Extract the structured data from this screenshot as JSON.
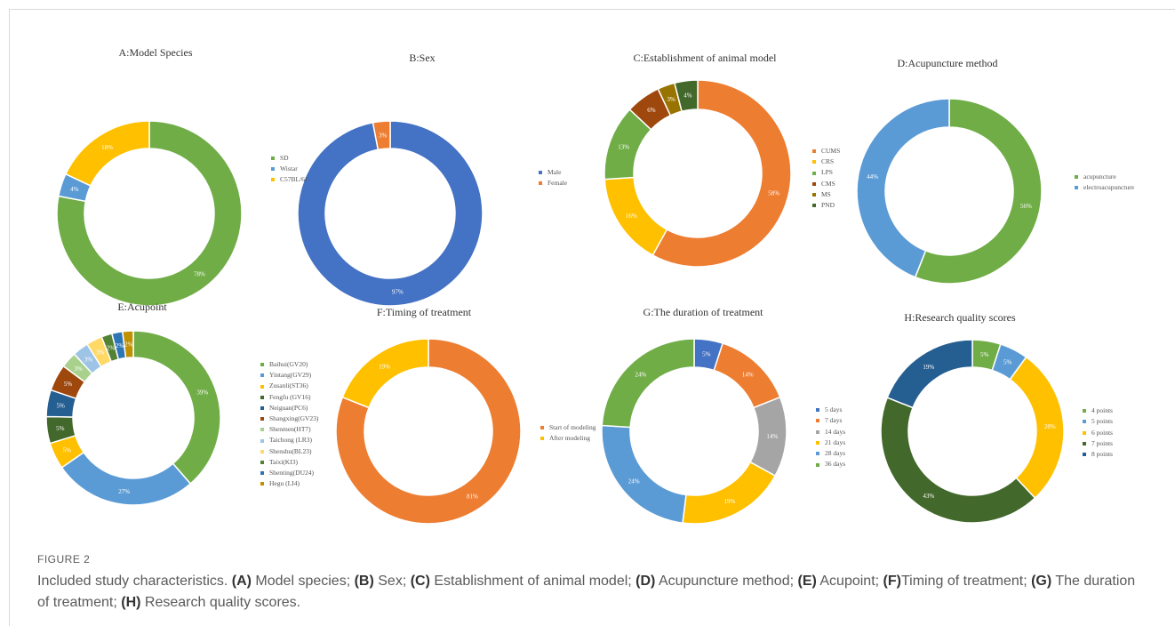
{
  "figure": {
    "label": "FIGURE 2",
    "caption_parts": [
      {
        "t": "Included study characteristics. ",
        "b": false
      },
      {
        "t": "(A)",
        "b": true
      },
      {
        "t": " Model species; ",
        "b": false
      },
      {
        "t": "(B)",
        "b": true
      },
      {
        "t": " Sex; ",
        "b": false
      },
      {
        "t": "(C)",
        "b": true
      },
      {
        "t": " Establishment of animal model; ",
        "b": false
      },
      {
        "t": "(D)",
        "b": true
      },
      {
        "t": " Acupuncture method; ",
        "b": false
      },
      {
        "t": "(E)",
        "b": true
      },
      {
        "t": " Acupoint; ",
        "b": false
      },
      {
        "t": "(F)",
        "b": true
      },
      {
        "t": "Timing of treatment; ",
        "b": false
      },
      {
        "t": "(G)",
        "b": true
      },
      {
        "t": " The duration of treatment; ",
        "b": false
      },
      {
        "t": "(H)",
        "b": true
      },
      {
        "t": " Research quality scores.",
        "b": false
      }
    ]
  },
  "chart_data": [
    {
      "type": "pie",
      "title": "A:Model Species",
      "categories": [
        "SD",
        "Wistar",
        "C57BL/6J"
      ],
      "values": [
        78,
        4,
        18
      ],
      "labels": [
        "78%",
        "4%",
        "18%"
      ],
      "colors": [
        "#70ad47",
        "#5b9bd5",
        "#ffc000"
      ],
      "legend_placement": "right"
    },
    {
      "type": "pie",
      "title": "B:Sex",
      "categories": [
        "Male",
        "Female"
      ],
      "values": [
        97,
        3
      ],
      "labels": [
        "97%",
        "3%"
      ],
      "colors": [
        "#4472c4",
        "#ed7d31"
      ],
      "legend_placement": "right"
    },
    {
      "type": "pie",
      "title": "C:Establishment of animal model",
      "categories": [
        "CUMS",
        "CRS",
        "LPS",
        "CMS",
        "MS",
        "PND"
      ],
      "values": [
        58,
        16,
        13,
        6,
        3,
        4
      ],
      "labels": [
        "58%",
        "16%",
        "13%",
        "6%",
        "3%",
        "4%"
      ],
      "colors": [
        "#ed7d31",
        "#ffc000",
        "#70ad47",
        "#9e480e",
        "#997300",
        "#43682b"
      ],
      "legend_placement": "right"
    },
    {
      "type": "pie",
      "title": "D:Acupuncture method",
      "categories": [
        "acupuncture",
        "electroacupuncture"
      ],
      "values": [
        56,
        44
      ],
      "labels": [
        "56%",
        "44%"
      ],
      "colors": [
        "#70ad47",
        "#5b9bd5"
      ],
      "legend_placement": "right"
    },
    {
      "type": "pie",
      "title": "E:Acupoint",
      "categories": [
        "Baihui(GV20)",
        "Yintang(GV29)",
        "Zusanli(ST36)",
        "Fengfu (GV16)",
        "Neiguan(PC6)",
        "Shangxing(GV23)",
        "Shenmen(HT7)",
        "Taichong (LR3)",
        "Shenshu(BL23)",
        "Taixi(KI3)",
        "Shenting(DU24)",
        "Hegu (LI4)"
      ],
      "values": [
        39,
        27,
        5,
        5,
        5,
        5,
        3,
        3,
        3,
        2,
        2,
        2
      ],
      "labels": [
        "39%",
        "27%",
        "5%",
        "5%",
        "5%",
        "5%",
        "3%",
        "3%",
        "3%",
        "2%",
        "2%",
        "2%"
      ],
      "colors": [
        "#70ad47",
        "#5b9bd5",
        "#ffc000",
        "#43682b",
        "#255e91",
        "#9e480e",
        "#a9d18e",
        "#9dc3e6",
        "#ffd966",
        "#548235",
        "#2e75b6",
        "#bf9000"
      ],
      "legend_placement": "right"
    },
    {
      "type": "pie",
      "title": "F:Timing of treatment",
      "categories": [
        "Start of modeling",
        "After modeling"
      ],
      "values": [
        81,
        19
      ],
      "labels": [
        "81%",
        "19%"
      ],
      "colors": [
        "#ed7d31",
        "#ffc000"
      ],
      "legend_placement": "right"
    },
    {
      "type": "pie",
      "title": "G:The duration of treatment",
      "categories": [
        "5 days",
        "7 days",
        "14 days",
        "21 days",
        "28 days",
        "36 days"
      ],
      "values": [
        5,
        14,
        14,
        19,
        24,
        24
      ],
      "labels": [
        "5%",
        "14%",
        "14%",
        "19%",
        "24%",
        "24%"
      ],
      "colors": [
        "#4472c4",
        "#ed7d31",
        "#a5a5a5",
        "#ffc000",
        "#5b9bd5",
        "#70ad47"
      ],
      "legend_placement": "right"
    },
    {
      "type": "pie",
      "title": "H:Research quality scores",
      "categories": [
        "4 points",
        "5 points",
        "6 points",
        "7 points",
        "8 points"
      ],
      "values": [
        5,
        5,
        28,
        43,
        19
      ],
      "labels": [
        "5%",
        "5%",
        "28%",
        "43%",
        "19%"
      ],
      "colors": [
        "#70ad47",
        "#5b9bd5",
        "#ffc000",
        "#43682b",
        "#255e91"
      ],
      "legend_placement": "right"
    }
  ]
}
